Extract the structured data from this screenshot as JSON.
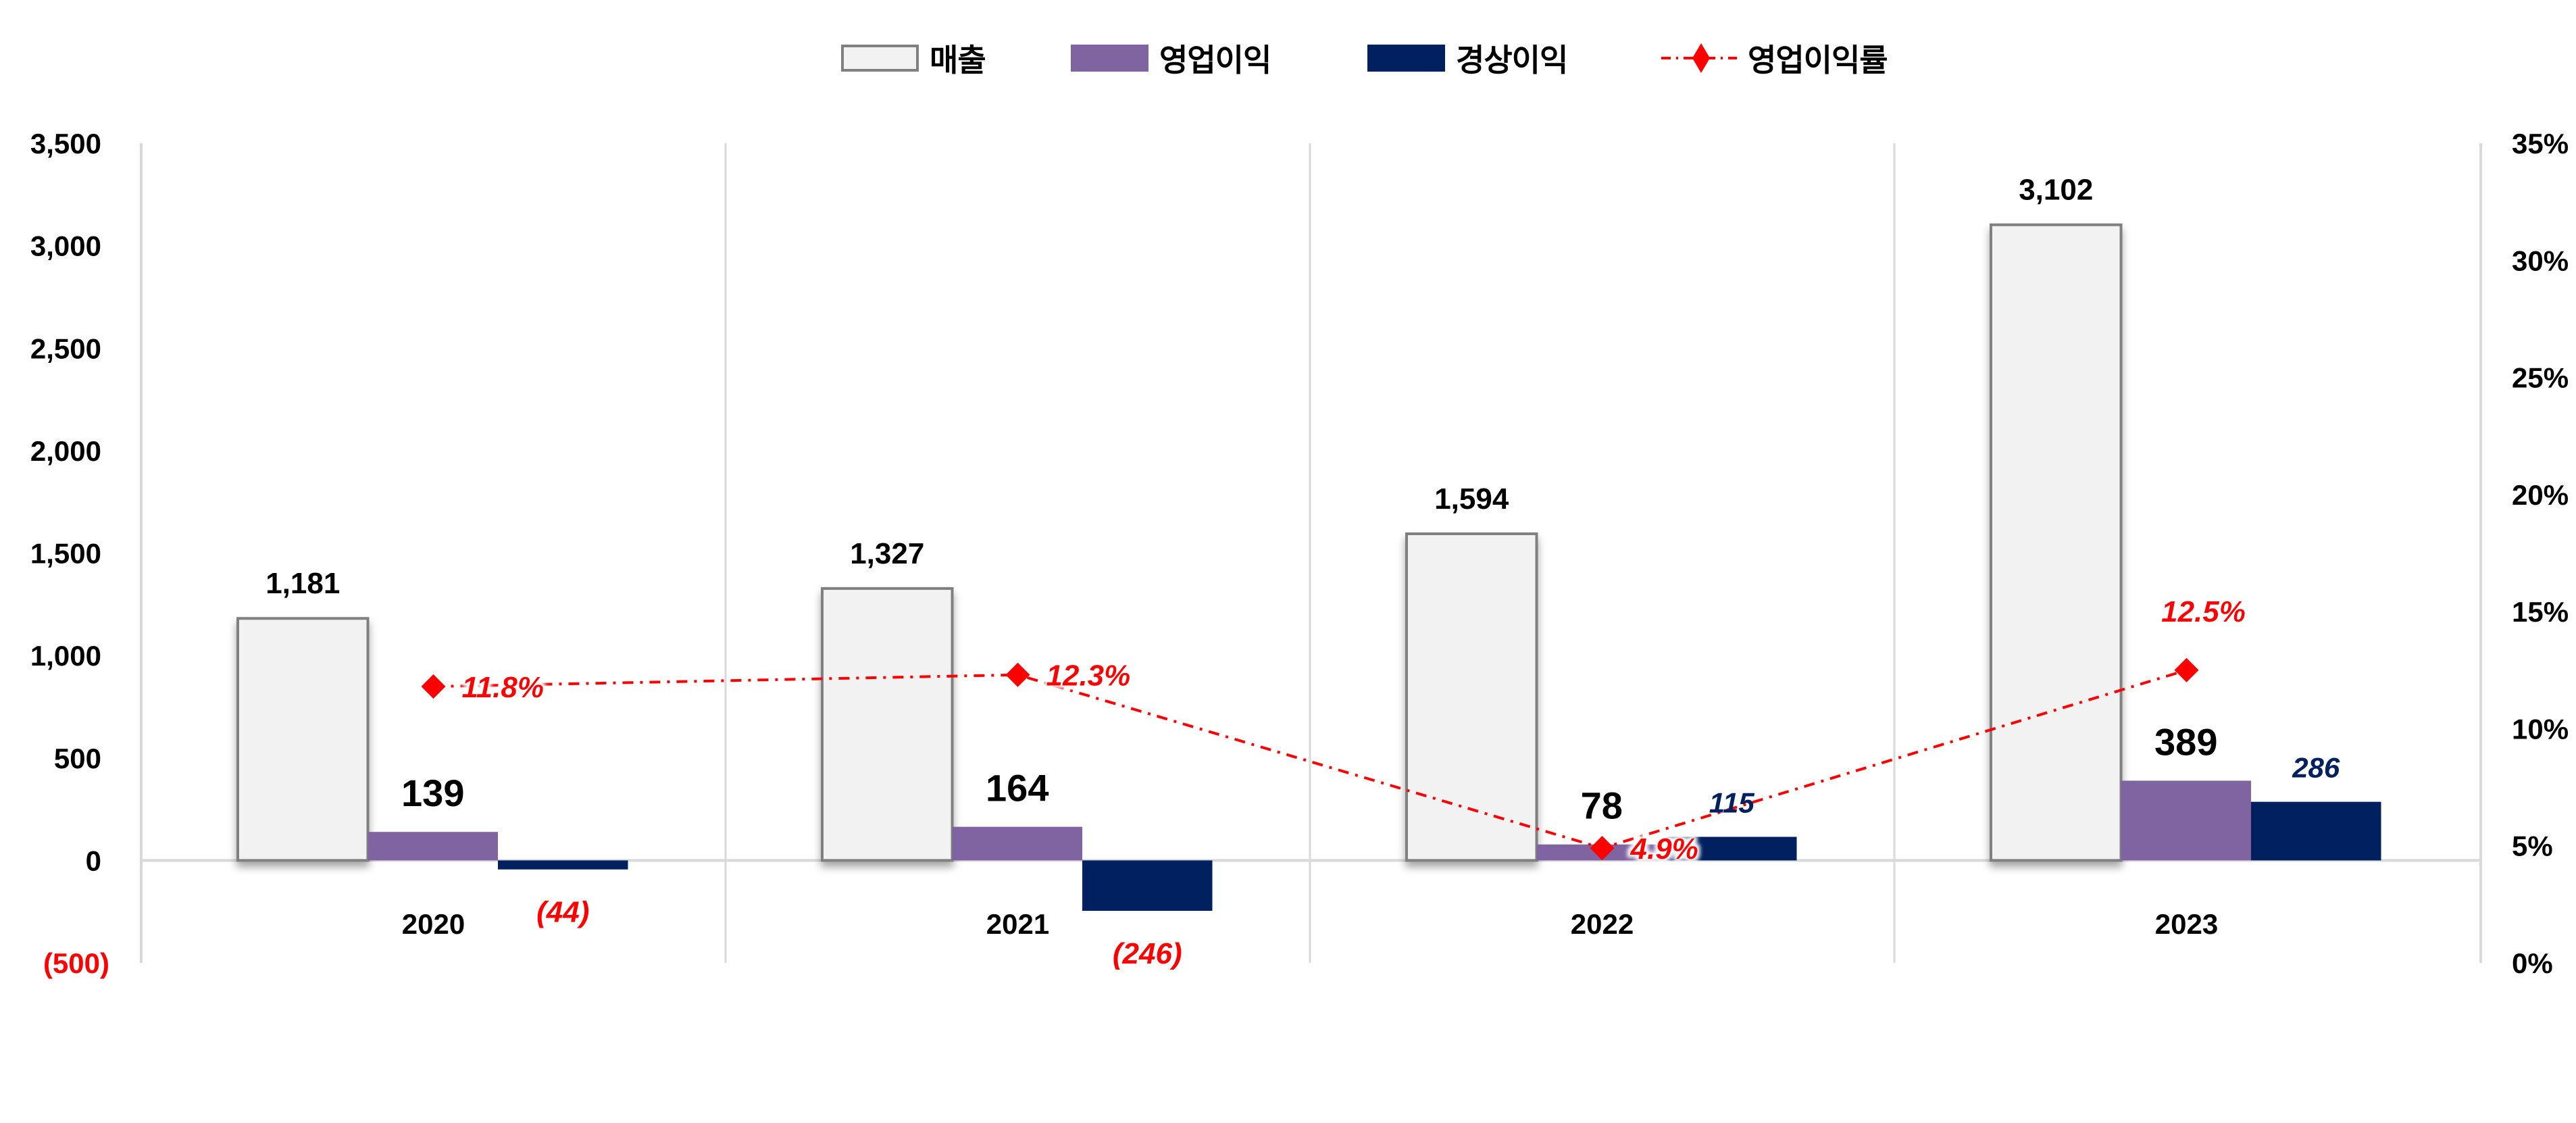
{
  "legend": {
    "items": [
      {
        "key": "sales",
        "label": "매출",
        "type": "bar",
        "color": "#f2f2f2",
        "border": "#808080"
      },
      {
        "key": "operating_profit",
        "label": "영업이익",
        "type": "bar",
        "color": "#8064a2"
      },
      {
        "key": "ordinary_profit",
        "label": "경상이익",
        "type": "bar",
        "color": "#002060"
      },
      {
        "key": "operating_margin",
        "label": "영업이익률",
        "type": "line",
        "color": "#ff0000",
        "marker": "diamond",
        "dash": "dash-dot"
      }
    ]
  },
  "colors": {
    "sales_fill": "#f2f2f2",
    "sales_border": "#808080",
    "operating_profit": "#8064a2",
    "ordinary_profit": "#002060",
    "margin_line": "#ff0000",
    "negative_label": "#ff0000",
    "gridline": "#d9d9d9",
    "text": "#000000"
  },
  "chart_data": {
    "type": "bar",
    "title": "",
    "xlabel": "",
    "ylabel": "",
    "categories": [
      "2020",
      "2021",
      "2022",
      "2023"
    ],
    "series": [
      {
        "name": "매출",
        "type": "bar",
        "axis": "left",
        "values": [
          1181,
          1327,
          1594,
          3102
        ],
        "labels": [
          "1,181",
          "1,327",
          "1,594",
          "3,102"
        ]
      },
      {
        "name": "영업이익",
        "type": "bar",
        "axis": "left",
        "values": [
          139,
          164,
          78,
          389
        ],
        "labels": [
          "139",
          "164",
          "78",
          "389"
        ]
      },
      {
        "name": "경상이익",
        "type": "bar",
        "axis": "left",
        "values": [
          -44,
          -246,
          115,
          286
        ],
        "labels": [
          "(44)",
          "(246)",
          "115",
          "286"
        ]
      },
      {
        "name": "영업이익률",
        "type": "line",
        "axis": "right",
        "values": [
          11.8,
          12.3,
          4.9,
          12.5
        ],
        "labels": [
          "11.8%",
          "12.3%",
          "4.9%",
          "12.5%"
        ]
      }
    ],
    "left_axis": {
      "ylim": [
        -500,
        3500
      ],
      "ticks": [
        3500,
        3000,
        2500,
        2000,
        1500,
        1000,
        500,
        0,
        -500
      ],
      "tick_labels": [
        "3,500",
        "3,000",
        "2,500",
        "2,000",
        "1,500",
        "1,000",
        "500",
        "0",
        "(500)"
      ]
    },
    "right_axis": {
      "ylim": [
        0,
        35
      ],
      "ticks": [
        35,
        30,
        25,
        20,
        15,
        10,
        5,
        0
      ],
      "tick_labels": [
        "35%",
        "30%",
        "25%",
        "20%",
        "15%",
        "10%",
        "5%",
        "0%"
      ]
    },
    "grid": false,
    "category_dividers": true,
    "legend_position": "top"
  }
}
